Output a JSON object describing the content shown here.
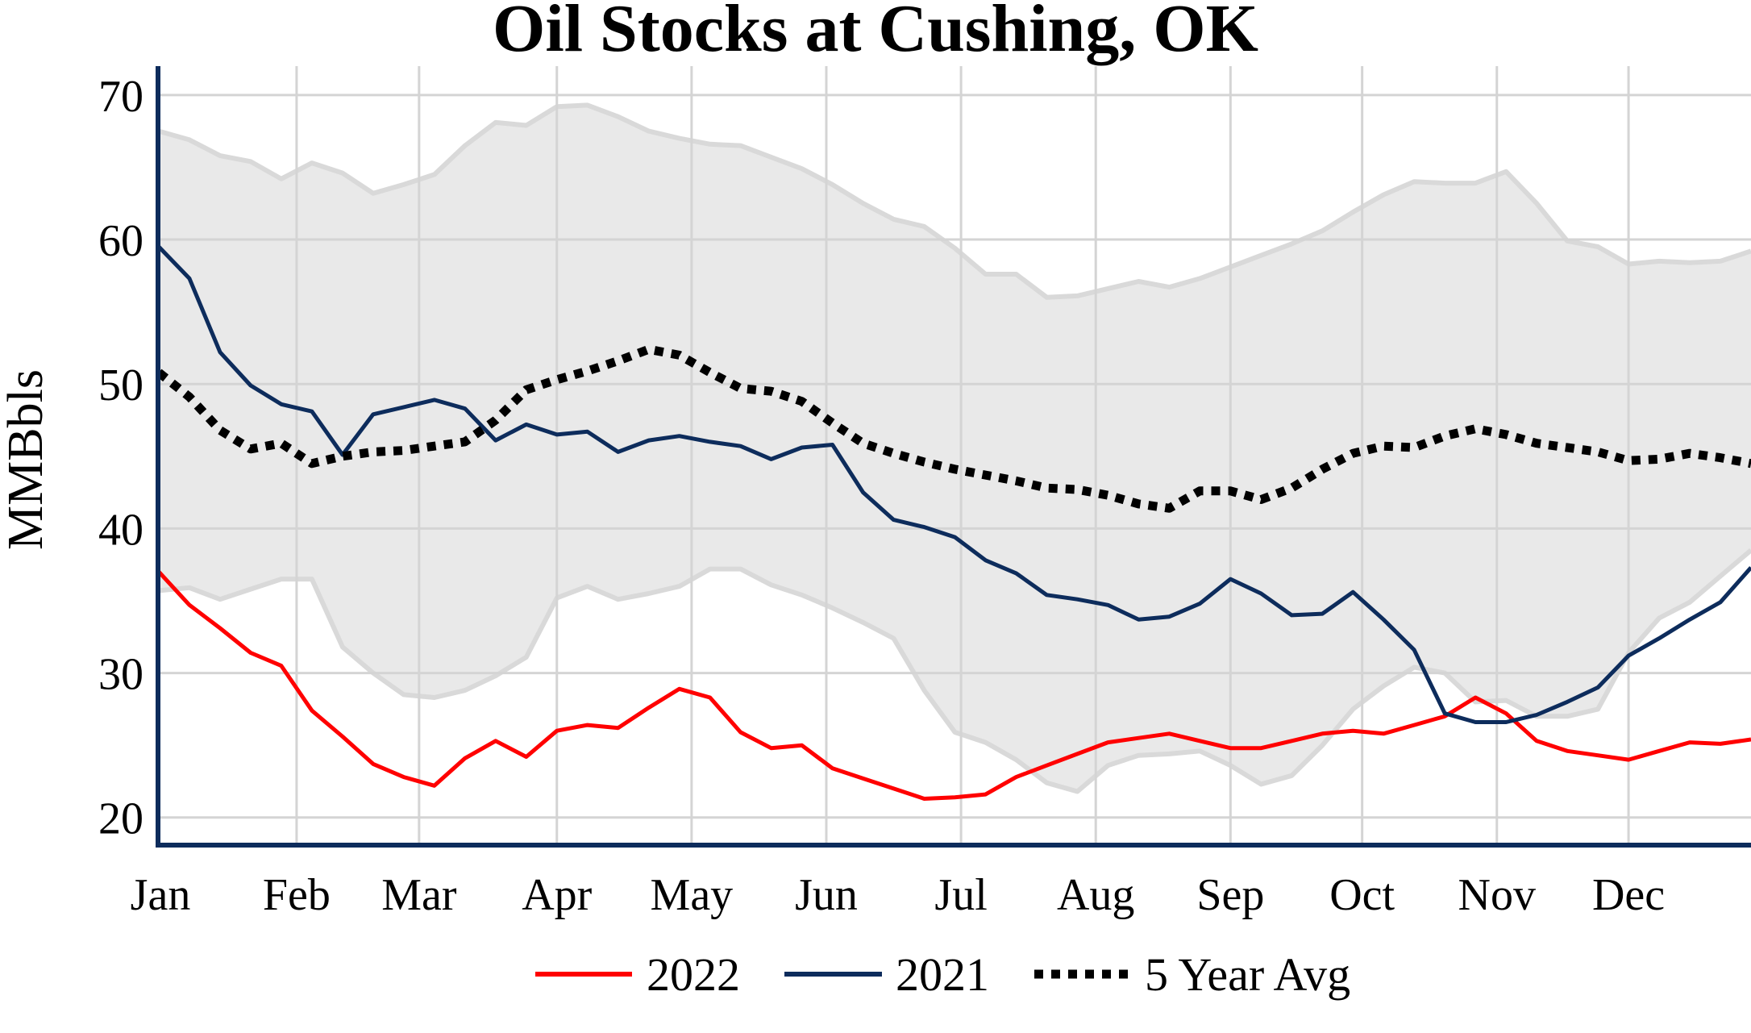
{
  "chart_data": {
    "type": "line",
    "title": "Oil Stocks at Cushing, OK",
    "xlabel": "",
    "ylabel": "MMBbls",
    "x_tick_labels": [
      "Jan",
      "Feb",
      "Mar",
      "Apr",
      "May",
      "Jun",
      "Jul",
      "Aug",
      "Sep",
      "Oct",
      "Nov",
      "Dec"
    ],
    "xlim": [
      1,
      53
    ],
    "ylim": [
      18.2,
      72
    ],
    "y_ticks": [
      20,
      30,
      40,
      50,
      60,
      70
    ],
    "grid": true,
    "legend_position": "bottom-center",
    "range_band": {
      "color": "#d9d9d9",
      "fill_color": "#e9e9e9",
      "x": [
        1,
        2,
        3,
        4,
        5,
        6,
        7,
        8,
        9,
        10,
        11,
        12,
        13,
        14,
        15,
        16,
        17,
        18,
        19,
        20,
        21,
        22,
        23,
        24,
        25,
        26,
        27,
        28,
        29,
        30,
        31,
        32,
        33,
        34,
        35,
        36,
        37,
        38,
        39,
        40,
        41,
        42,
        43,
        44,
        45,
        46,
        47,
        48,
        49,
        50,
        51,
        52,
        53
      ],
      "upper": [
        67.5,
        66.9,
        65.8,
        65.4,
        64.2,
        65.3,
        64.6,
        63.2,
        63.8,
        64.5,
        66.5,
        68.1,
        67.9,
        69.2,
        69.3,
        68.5,
        67.5,
        67.0,
        66.6,
        66.5,
        65.7,
        64.9,
        63.8,
        62.5,
        61.4,
        60.9,
        59.4,
        57.6,
        57.6,
        56.0,
        56.1,
        56.6,
        57.1,
        56.7,
        57.3,
        58.1,
        58.9,
        59.7,
        60.6,
        61.9,
        63.1,
        64.0,
        63.9,
        63.9,
        64.7,
        62.5,
        59.9,
        59.5,
        58.3,
        58.5,
        58.4,
        58.5,
        59.2
      ],
      "lower": [
        35.7,
        35.9,
        35.1,
        35.8,
        36.5,
        36.5,
        31.8,
        30.0,
        28.5,
        28.3,
        28.8,
        29.8,
        31.1,
        35.2,
        36.0,
        35.1,
        35.5,
        36.0,
        37.2,
        37.2,
        36.1,
        35.4,
        34.5,
        33.5,
        32.4,
        28.8,
        25.9,
        25.2,
        24.0,
        22.4,
        21.8,
        23.6,
        24.3,
        24.4,
        24.6,
        23.6,
        22.3,
        22.9,
        25.0,
        27.5,
        29.1,
        30.4,
        30.0,
        28.0,
        28.1,
        27.0,
        27.0,
        27.5,
        31.4,
        33.8,
        34.9,
        36.7,
        38.5
      ]
    },
    "series": [
      {
        "name": "2022",
        "color": "#ff0000",
        "style": "solid",
        "x": [
          1,
          2,
          3,
          4,
          5,
          6,
          7,
          8,
          9,
          10,
          11,
          12,
          13,
          14,
          15,
          16,
          17,
          18,
          19,
          20,
          21,
          22,
          23,
          24,
          25,
          26,
          27,
          28,
          29,
          30,
          31,
          32,
          33,
          34,
          35,
          36,
          37,
          38,
          39,
          40,
          41,
          42,
          43,
          44,
          45,
          46,
          47,
          48,
          49,
          50,
          51,
          52,
          53
        ],
        "values": [
          37.0,
          34.7,
          33.1,
          31.4,
          30.5,
          27.4,
          25.6,
          23.7,
          22.8,
          22.2,
          24.1,
          25.3,
          24.2,
          26.0,
          26.4,
          26.2,
          27.6,
          28.9,
          28.3,
          25.9,
          24.8,
          25.0,
          23.4,
          22.7,
          22.0,
          21.3,
          21.4,
          21.6,
          22.8,
          23.6,
          24.4,
          25.2,
          25.5,
          25.8,
          25.3,
          24.8,
          24.8,
          25.3,
          25.8,
          26.0,
          25.8,
          26.4,
          27.0,
          28.3,
          27.2,
          25.3,
          24.6,
          24.3,
          24.0,
          24.6,
          25.2,
          25.1,
          25.4
        ]
      },
      {
        "name": "2021",
        "color": "#0d2c5c",
        "style": "solid",
        "x": [
          1,
          2,
          3,
          4,
          5,
          6,
          7,
          8,
          9,
          10,
          11,
          12,
          13,
          14,
          15,
          16,
          17,
          18,
          19,
          20,
          21,
          22,
          23,
          24,
          25,
          26,
          27,
          28,
          29,
          30,
          31,
          32,
          33,
          34,
          35,
          36,
          37,
          38,
          39,
          40,
          41,
          42,
          43,
          44,
          45,
          46,
          47,
          48,
          49,
          50,
          51,
          52,
          53
        ],
        "values": [
          59.5,
          57.3,
          52.2,
          49.9,
          48.6,
          48.1,
          45.1,
          47.9,
          48.4,
          48.9,
          48.3,
          46.1,
          47.2,
          46.5,
          46.7,
          45.3,
          46.1,
          46.4,
          46.0,
          45.7,
          44.8,
          45.6,
          45.8,
          42.5,
          40.6,
          40.1,
          39.4,
          37.8,
          36.9,
          35.4,
          35.1,
          34.7,
          33.7,
          33.9,
          34.8,
          36.5,
          35.5,
          34.0,
          34.1,
          35.6,
          33.7,
          31.6,
          27.2,
          26.6,
          26.6,
          27.1,
          28.0,
          29.0,
          31.2,
          32.4,
          33.7,
          34.9,
          37.3
        ]
      },
      {
        "name": "5 Year Avg",
        "color": "#000000",
        "style": "dotted",
        "x": [
          1,
          2,
          3,
          4,
          5,
          6,
          7,
          8,
          9,
          10,
          11,
          12,
          13,
          14,
          15,
          16,
          17,
          18,
          19,
          20,
          21,
          22,
          23,
          24,
          25,
          26,
          27,
          28,
          29,
          30,
          31,
          32,
          33,
          34,
          35,
          36,
          37,
          38,
          39,
          40,
          41,
          42,
          43,
          44,
          45,
          46,
          47,
          48,
          49,
          50,
          51,
          52,
          53
        ],
        "values": [
          50.8,
          49.1,
          46.8,
          45.5,
          45.9,
          44.5,
          45.0,
          45.3,
          45.4,
          45.7,
          46.0,
          47.5,
          49.6,
          50.3,
          50.9,
          51.6,
          52.4,
          52.0,
          50.8,
          49.7,
          49.5,
          48.8,
          47.3,
          45.9,
          45.2,
          44.6,
          44.1,
          43.7,
          43.3,
          42.8,
          42.7,
          42.3,
          41.7,
          41.4,
          42.6,
          42.6,
          42.0,
          42.8,
          44.1,
          45.2,
          45.7,
          45.6,
          46.4,
          46.9,
          46.5,
          45.9,
          45.6,
          45.3,
          44.7,
          44.8,
          45.2,
          44.9,
          44.5
        ]
      }
    ]
  }
}
